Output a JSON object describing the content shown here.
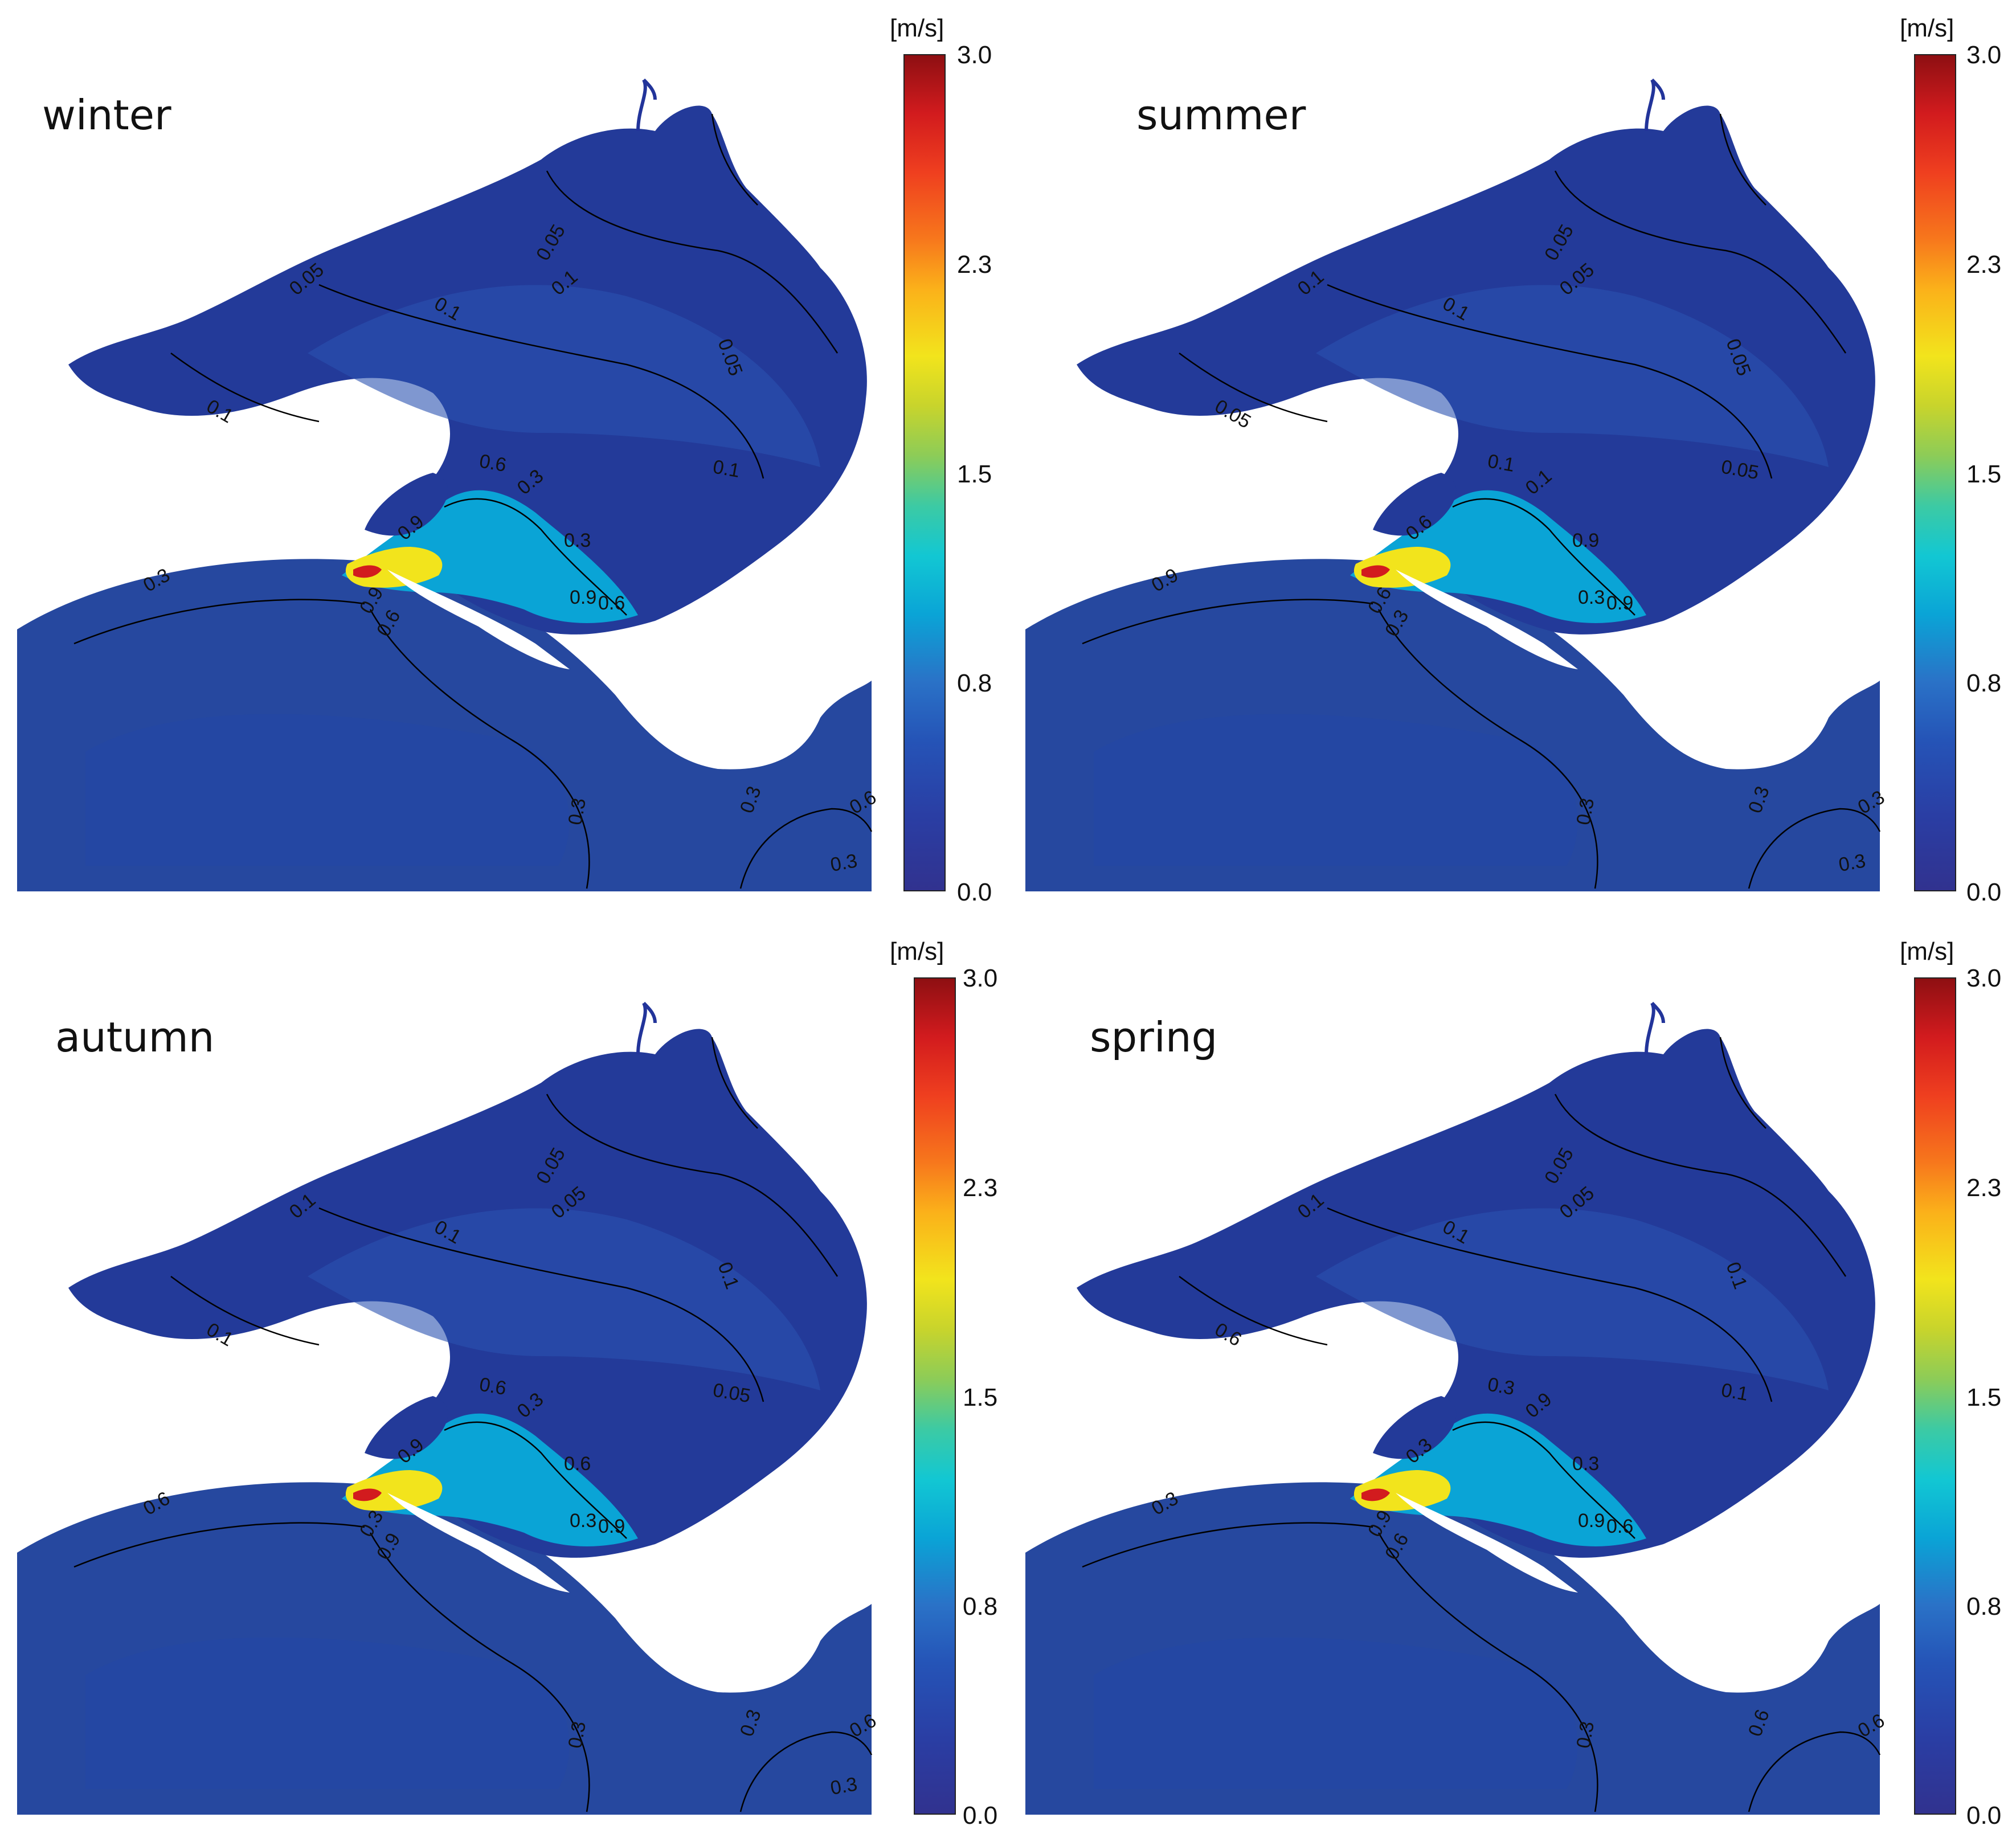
{
  "panels": [
    {
      "season": "winter",
      "labels": [
        "0.05",
        "0.1",
        "0.05",
        "0.1",
        "0.05",
        "0.1",
        "0.1",
        "0.6",
        "0.3",
        "0.9",
        "0.9",
        "0.6",
        "0.3",
        "0.9",
        "0.6",
        "0.3",
        "0.3",
        "0.3",
        "0.6",
        "0.3"
      ]
    },
    {
      "season": "summer",
      "labels": [
        "0.05",
        "0.05",
        "0.05",
        "0.05",
        "0.1",
        "0.1",
        "0.05",
        "0.1",
        "0.1",
        "0.6",
        "0.3",
        "0.9",
        "0.9",
        "0.6",
        "0.3",
        "0.9",
        "0.3",
        "0.3",
        "0.3",
        "0.3"
      ]
    },
    {
      "season": "autumn",
      "labels": [
        "0.05",
        "0.05",
        "0.1",
        "0.05",
        "0.1",
        "0.1",
        "0.1",
        "0.6",
        "0.3",
        "0.9",
        "0.3",
        "0.9",
        "0.6",
        "0.3",
        "0.9",
        "0.6",
        "0.3",
        "0.3",
        "0.6",
        "0.3"
      ]
    },
    {
      "season": "spring",
      "labels": [
        "0.05",
        "0.05",
        "0.1",
        "0.1",
        "0.1",
        "0.1",
        "0.6",
        "0.3",
        "0.9",
        "0.3",
        "0.9",
        "0.6",
        "0.3",
        "0.9",
        "0.6",
        "0.3",
        "0.3",
        "0.6",
        "0.6"
      ]
    }
  ],
  "colorbar": {
    "unit": "[m/s]",
    "ticks": [
      "3.0",
      "2.3",
      "1.5",
      "0.8",
      "0.0"
    ],
    "colors": [
      "#31328f",
      "#2554b7",
      "#0aa4d6",
      "#3ccaa4",
      "#f2e41c",
      "#f7771c",
      "#d21b1e",
      "#8e0f12"
    ]
  },
  "map_colors": {
    "background": "#26489f",
    "bay": "#233a99",
    "shallow": "#2a52b0",
    "outline": "#000000"
  }
}
